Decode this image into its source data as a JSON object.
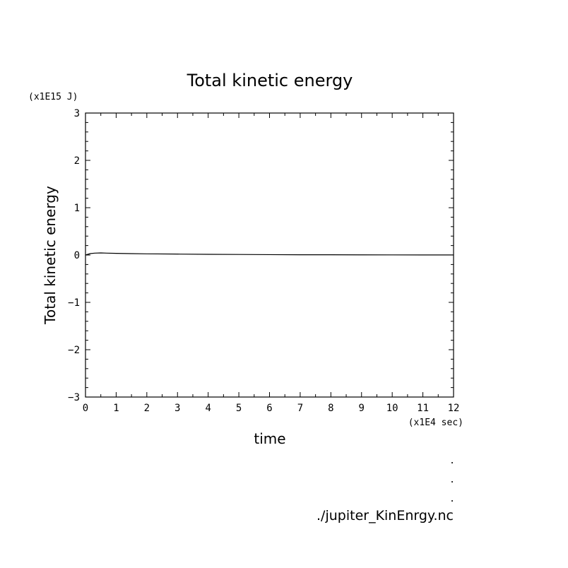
{
  "chart_data": {
    "type": "line",
    "title": "Total kinetic energy",
    "xlabel": "time",
    "ylabel": "Total kinetic energy",
    "x_unit": "(x1E4 sec)",
    "y_unit": "(x1E15 J)",
    "xlim": [
      0,
      12
    ],
    "ylim": [
      -3,
      3
    ],
    "x_ticks": [
      0,
      1,
      2,
      3,
      4,
      5,
      6,
      7,
      8,
      9,
      10,
      11,
      12
    ],
    "y_ticks": [
      -3,
      -2,
      -1,
      0,
      1,
      2,
      3
    ],
    "x_tick_labels": [
      "0",
      "1",
      "2",
      "3",
      "4",
      "5",
      "6",
      "7",
      "8",
      "9",
      "10",
      "11",
      "12"
    ],
    "y_tick_labels": [
      "−3",
      "−2",
      "−1",
      "0",
      "1",
      "2",
      "3"
    ],
    "grid": false,
    "series": [
      {
        "x": [
          0,
          0.15,
          0.3,
          0.5,
          0.7,
          1.0,
          1.5,
          2.0,
          3.0,
          4.0,
          5.0,
          6.0,
          7.0,
          8.0,
          9.0,
          10.0,
          11.0,
          12.0
        ],
        "y": [
          0.0,
          0.03,
          0.04,
          0.045,
          0.04,
          0.035,
          0.03,
          0.025,
          0.02,
          0.015,
          0.012,
          0.008,
          0.006,
          0.005,
          0.004,
          0.003,
          0.002,
          0.002
        ]
      }
    ]
  },
  "footer": {
    "filename": "./jupiter_KinEnrgy.nc",
    "dots": [
      ".",
      ".",
      "."
    ]
  }
}
